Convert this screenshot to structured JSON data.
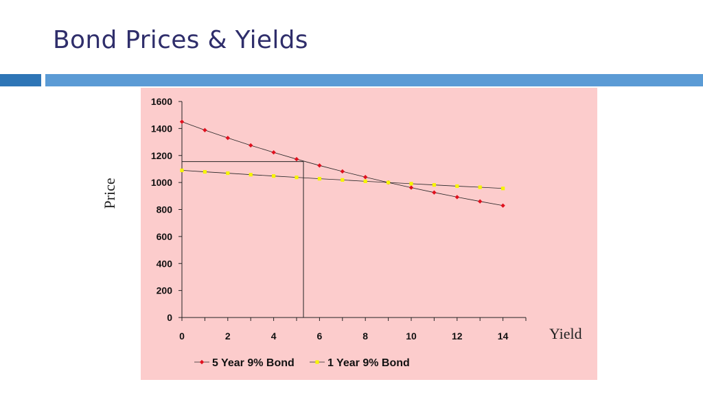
{
  "slide": {
    "title": "Bond Prices & Yields"
  },
  "colors": {
    "title": "#2f2e6b",
    "bar_dark": "#2e75b6",
    "bar_light": "#5b9bd5",
    "plot_bg": "#fccccc",
    "series_5yr": "#e0101e",
    "series_1yr": "#f5f500"
  },
  "chart_data": {
    "type": "line",
    "title": "",
    "xlabel": "Yield",
    "ylabel": "Price",
    "xlim": [
      0,
      15
    ],
    "ylim": [
      0,
      1600
    ],
    "x_ticks": [
      0,
      2,
      4,
      6,
      8,
      10,
      12,
      14
    ],
    "y_ticks": [
      0,
      200,
      400,
      600,
      800,
      1000,
      1200,
      1400,
      1600
    ],
    "grid": false,
    "legend_position": "bottom",
    "x": [
      0,
      1,
      2,
      3,
      4,
      5,
      6,
      7,
      8,
      9,
      10,
      11,
      12,
      13,
      14
    ],
    "series": [
      {
        "name": "5 Year 9% Bond",
        "color": "#e0101e",
        "marker": "diamond",
        "values": [
          1450,
          1388,
          1330,
          1275,
          1223,
          1173,
          1126,
          1082,
          1040,
          1000,
          962,
          926,
          892,
          860,
          829
        ]
      },
      {
        "name": "1 Year 9% Bond",
        "color": "#f5f500",
        "marker": "square",
        "values": [
          1090,
          1079,
          1069,
          1058,
          1048,
          1038,
          1028,
          1019,
          1009,
          1000,
          991,
          982,
          973,
          965,
          956
        ]
      }
    ],
    "reference_line": {
      "x": 5.3,
      "y": 1155
    }
  }
}
